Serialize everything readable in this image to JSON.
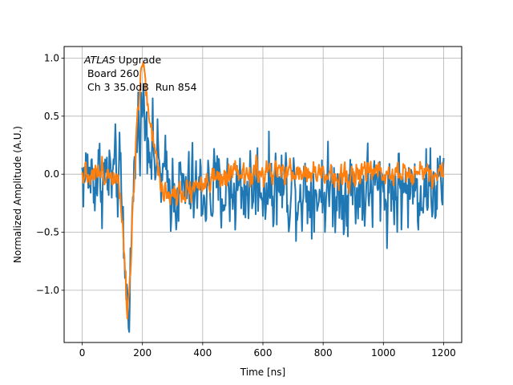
{
  "chart_data": {
    "type": "line",
    "title": "",
    "xlabel": "Time [ns]",
    "ylabel": "Normalized Amplitude (A.U.)",
    "xlim": [
      -60,
      1260
    ],
    "ylim": [
      -1.45,
      1.1
    ],
    "x_ticks": [
      0,
      200,
      400,
      600,
      800,
      1000,
      1200
    ],
    "y_ticks": [
      -1.0,
      -0.5,
      0.0,
      0.5,
      1.0
    ],
    "x_tick_labels": [
      "0",
      "200",
      "400",
      "600",
      "800",
      "1000",
      "1200"
    ],
    "y_tick_labels": [
      "−1.0",
      "−0.5",
      "0.0",
      "0.5",
      "1.0"
    ],
    "grid": true,
    "annotation": {
      "line1_italic": "ATLAS",
      "line1_rest": " Upgrade",
      "line2": " Board 260",
      "line3": " Ch 3 35.0dB  Run 854"
    },
    "x_range": [
      0,
      1200
    ],
    "sample_step_ns": 2,
    "series": [
      {
        "color": "#1f77b4",
        "noise": 0.17,
        "pulse_scale": 1.0,
        "baseline_shape": [
          [
            0,
            0.0
          ],
          [
            100,
            -0.05
          ],
          [
            130,
            -0.1
          ],
          [
            260,
            0.1
          ],
          [
            350,
            -0.12
          ],
          [
            450,
            -0.1
          ],
          [
            600,
            0.02
          ],
          [
            700,
            -0.02
          ],
          [
            800,
            -0.1
          ],
          [
            900,
            -0.05
          ],
          [
            1000,
            -0.1
          ],
          [
            1100,
            -0.05
          ],
          [
            1200,
            0.0
          ]
        ],
        "pulse": [
          [
            0,
            0.0
          ],
          [
            125,
            -0.05
          ],
          [
            138,
            -0.6
          ],
          [
            150,
            -1.15
          ],
          [
            160,
            -0.8
          ],
          [
            175,
            0.1
          ],
          [
            190,
            0.55
          ],
          [
            200,
            0.55
          ],
          [
            215,
            0.45
          ],
          [
            240,
            0.15
          ],
          [
            260,
            0.0
          ],
          [
            280,
            -0.1
          ],
          [
            1200,
            -0.1
          ]
        ]
      },
      {
        "color": "#ff7f0e",
        "noise": 0.05,
        "pulse_scale": 1.0,
        "baseline_shape": [
          [
            0,
            0.0
          ],
          [
            300,
            0.0
          ],
          [
            600,
            0.02
          ],
          [
            800,
            0.0
          ],
          [
            900,
            -0.04
          ],
          [
            950,
            0.05
          ],
          [
            1100,
            0.04
          ],
          [
            1200,
            0.02
          ]
        ],
        "pulse": [
          [
            0,
            0.02
          ],
          [
            120,
            0.0
          ],
          [
            135,
            -0.4
          ],
          [
            150,
            -1.22
          ],
          [
            162,
            -0.7
          ],
          [
            180,
            0.4
          ],
          [
            195,
            0.9
          ],
          [
            205,
            0.95
          ],
          [
            220,
            0.55
          ],
          [
            240,
            0.2
          ],
          [
            265,
            -0.1
          ],
          [
            290,
            -0.18
          ],
          [
            330,
            -0.14
          ],
          [
            420,
            -0.07
          ],
          [
            500,
            -0.03
          ],
          [
            600,
            0.0
          ],
          [
            1200,
            0.0
          ]
        ]
      }
    ]
  }
}
